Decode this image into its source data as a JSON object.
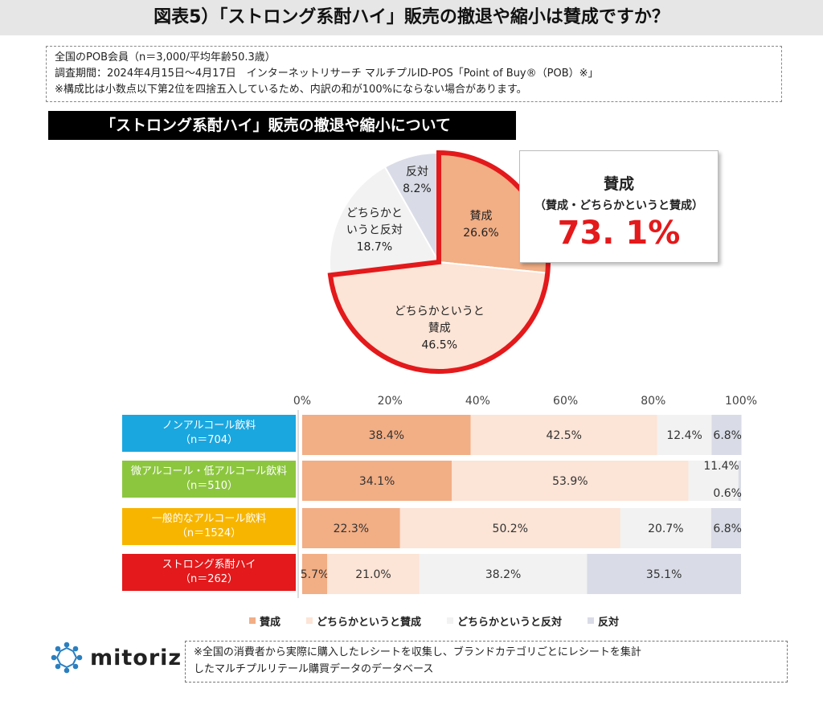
{
  "title": "図表5）「ストロング系酎ハイ」販売の撤退や縮小は賛成ですか？",
  "notes": [
    "全国のPOB会員（n＝3,000/平均年齢50.3歳）",
    "調査期間：2024年4月15日～4月17日　インターネットリサーチ マルチプルID-POS「Point of Buy®（POB）※」",
    "※構成比は小数点以下第2位を四捨五入しているため、内訳の和が100%にならない場合があります。"
  ],
  "section_heading": "「ストロング系酎ハイ」販売の撤退や縮小について",
  "callout": {
    "line1": "賛成",
    "line2": "（賛成・どちらかというと賛成）",
    "value": "73. 1%"
  },
  "colors": {
    "agree": "#f2ae85",
    "somewhat_agree": "#fce4d6",
    "somewhat_disagree": "#f2f2f2",
    "disagree": "#d9dce6",
    "highlight": "#e3191b"
  },
  "chart_data": [
    {
      "type": "pie",
      "title": "「ストロング系酎ハイ」販売の撤退や縮小について",
      "slices": [
        {
          "label": "賛成",
          "value": 26.6,
          "label_lines": [
            "賛成",
            "26.6%"
          ]
        },
        {
          "label": "どちらかというと賛成",
          "value": 46.5,
          "label_lines": [
            "どちらかというと",
            "賛成",
            "46.5%"
          ]
        },
        {
          "label": "どちらかというと反対",
          "value": 18.7,
          "label_lines": [
            "どちらかと",
            "いうと反対",
            "18.7%"
          ]
        },
        {
          "label": "反対",
          "value": 8.2,
          "label_lines": [
            "反対",
            "8.2%"
          ]
        }
      ]
    },
    {
      "type": "bar",
      "orientation": "horizontal",
      "stacked": true,
      "xlim": [
        0,
        100
      ],
      "ticks": [
        "0%",
        "20%",
        "40%",
        "60%",
        "80%",
        "100%"
      ],
      "categories": [
        {
          "name": "ノンアルコール飲料",
          "n": "（n＝704）",
          "color": "#1aa7e0"
        },
        {
          "name": "微アルコール・低アルコール飲料",
          "n": "（n＝510）",
          "color": "#8cc63f"
        },
        {
          "name": "一般的なアルコール飲料",
          "n": "（n＝1524）",
          "color": "#f7b500"
        },
        {
          "name": "ストロング系酎ハイ",
          "n": "（n＝262）",
          "color": "#e3191b"
        }
      ],
      "series": [
        {
          "name": "賛成",
          "values": [
            38.4,
            34.1,
            22.3,
            5.7
          ]
        },
        {
          "name": "どちらかというと賛成",
          "values": [
            42.5,
            53.9,
            50.2,
            21.0
          ]
        },
        {
          "name": "どちらかというと反対",
          "values": [
            12.4,
            11.4,
            20.7,
            38.2
          ]
        },
        {
          "name": "反対",
          "values": [
            6.8,
            0.6,
            6.8,
            35.1
          ]
        }
      ],
      "data_labels": [
        [
          "38.4%",
          "42.5%",
          "12.4%",
          "6.8%"
        ],
        [
          "34.1%",
          "53.9%",
          "11.4%",
          "0.6%"
        ],
        [
          "22.3%",
          "50.2%",
          "20.7%",
          "6.8%"
        ],
        [
          "5.7%",
          "21.0%",
          "38.2%",
          "35.1%"
        ]
      ]
    }
  ],
  "logo": {
    "text": "mitoriz"
  },
  "footnote": [
    "※全国の消費者から実際に購入したレシートを収集し、ブランドカテゴリごとにレシートを集計",
    "したマルチプルリテール購買データのデータベース"
  ]
}
